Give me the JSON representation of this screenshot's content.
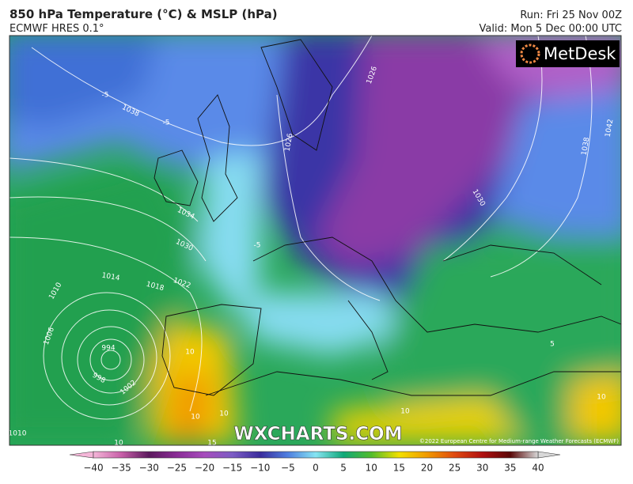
{
  "header": {
    "title": "850 hPa Temperature (°C) & MSLP (hPa)",
    "subtitle": "ECMWF HRES 0.1°",
    "run": "Run: Fri 25 Nov 00Z",
    "valid": "Valid: Mon 5 Dec 00:00 UTC"
  },
  "map": {
    "logo": "MetDesk",
    "watermark": "WXCHARTS.COM",
    "copyright": "©2022 European Centre for Medium-range Weather Forecasts (ECMWF)",
    "contour_labels": [
      "1038",
      "1038",
      "1042",
      "1034",
      "1030",
      "1026",
      "1026",
      "1030",
      "1022",
      "1018",
      "1014",
      "1010",
      "1006",
      "994",
      "998",
      "1002",
      "1010",
      "-5",
      "-5",
      "-5",
      "5",
      "10",
      "10",
      "10",
      "10",
      "10",
      "10",
      "15"
    ]
  },
  "colorbar": {
    "labels": [
      "−40",
      "−35",
      "−30",
      "−25",
      "−20",
      "−15",
      "−10",
      "−5",
      "0",
      "5",
      "10",
      "15",
      "20",
      "25",
      "30",
      "35",
      "40"
    ],
    "colors": [
      "#f4b6d8",
      "#c860a8",
      "#5c1a5e",
      "#8a2c96",
      "#a64cbc",
      "#7c5cc4",
      "#3a2c9c",
      "#4f7fe0",
      "#86e4f2",
      "#10a878",
      "#52bc2c",
      "#f2e000",
      "#f09a00",
      "#e04a10",
      "#b01010",
      "#5a0808",
      "#d8d8d8"
    ]
  }
}
